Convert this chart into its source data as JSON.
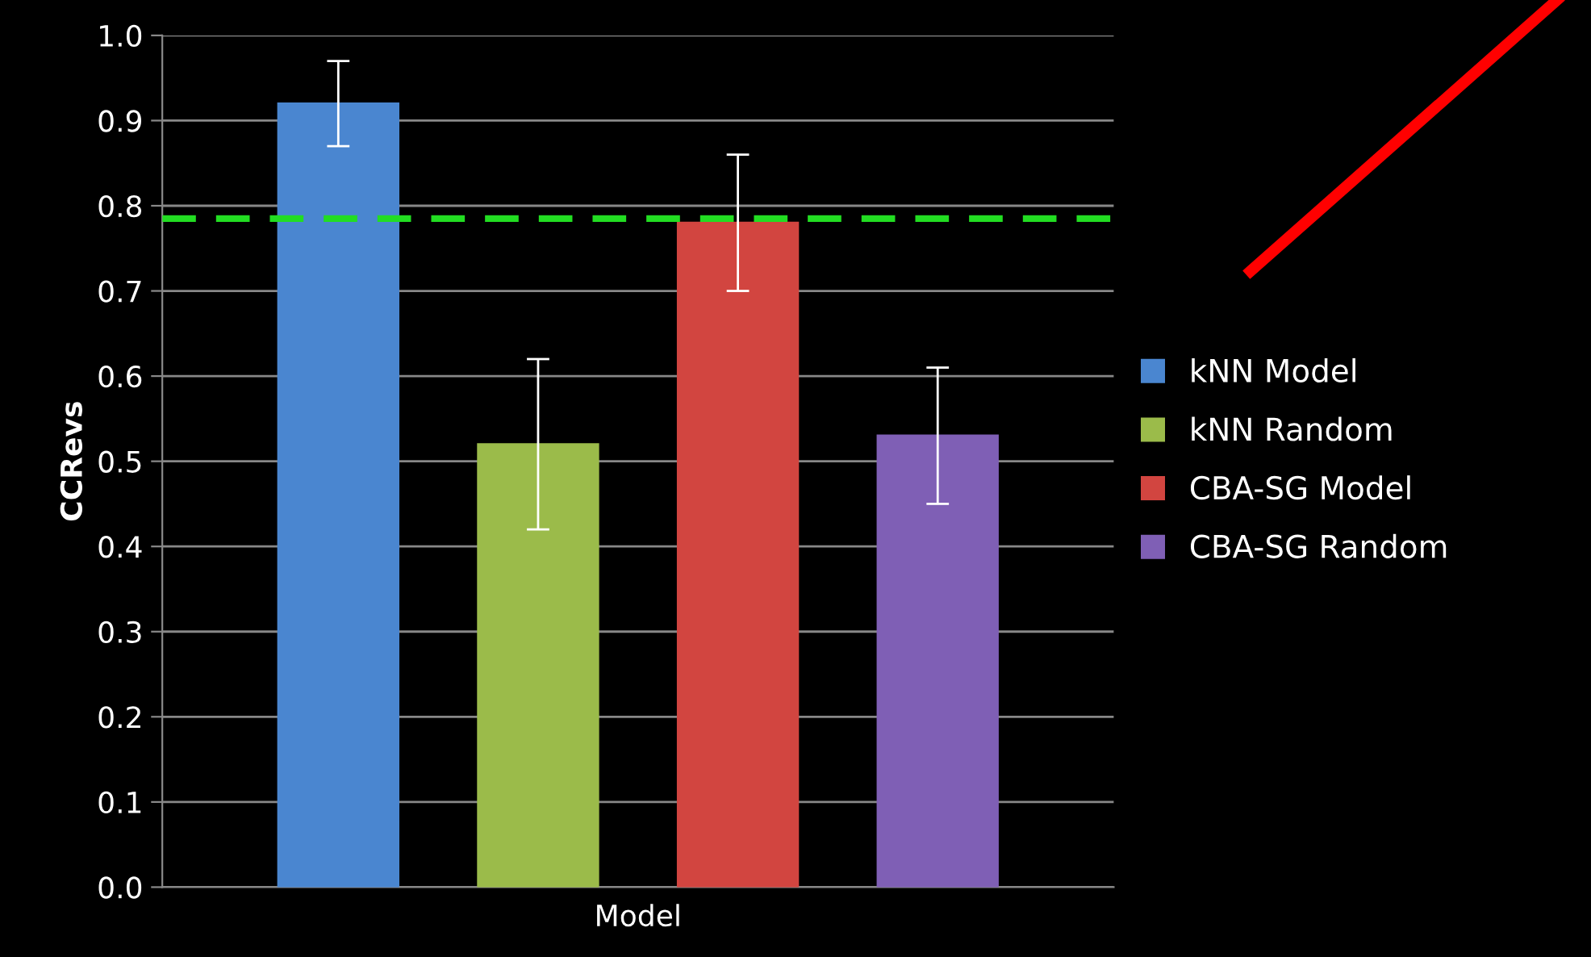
{
  "chart_data": {
    "type": "bar",
    "xlabel": "Model",
    "ylabel": "CCRevs",
    "categories": [
      null
    ],
    "series": [
      {
        "name": "kNN Model",
        "color": "#4a86d0",
        "values": [
          0.92
        ],
        "errors": [
          0.05
        ]
      },
      {
        "name": "kNN Random",
        "color": "#9bbb4a",
        "values": [
          0.52
        ],
        "errors": [
          0.1
        ]
      },
      {
        "name": "CBA-SG Model",
        "color": "#d24540",
        "values": [
          0.78
        ],
        "errors": [
          0.08
        ]
      },
      {
        "name": "CBA-SG Random",
        "color": "#7f5fb5",
        "values": [
          0.53
        ],
        "errors": [
          0.08
        ]
      }
    ],
    "ylim": [
      0,
      1
    ],
    "yticks": [
      {
        "value": 0,
        "label": "0.0"
      },
      0.1,
      0.2,
      0.3,
      0.4,
      0.5,
      0.6,
      0.7,
      0.8,
      0.9,
      {
        "value": 1,
        "label": "1.0"
      }
    ],
    "grid": "y",
    "legend": "right",
    "ref_lines": [
      {
        "axis": "y",
        "value": 0.785,
        "label": null,
        "color": "#22dd22",
        "line_style": "dashed"
      }
    ]
  }
}
